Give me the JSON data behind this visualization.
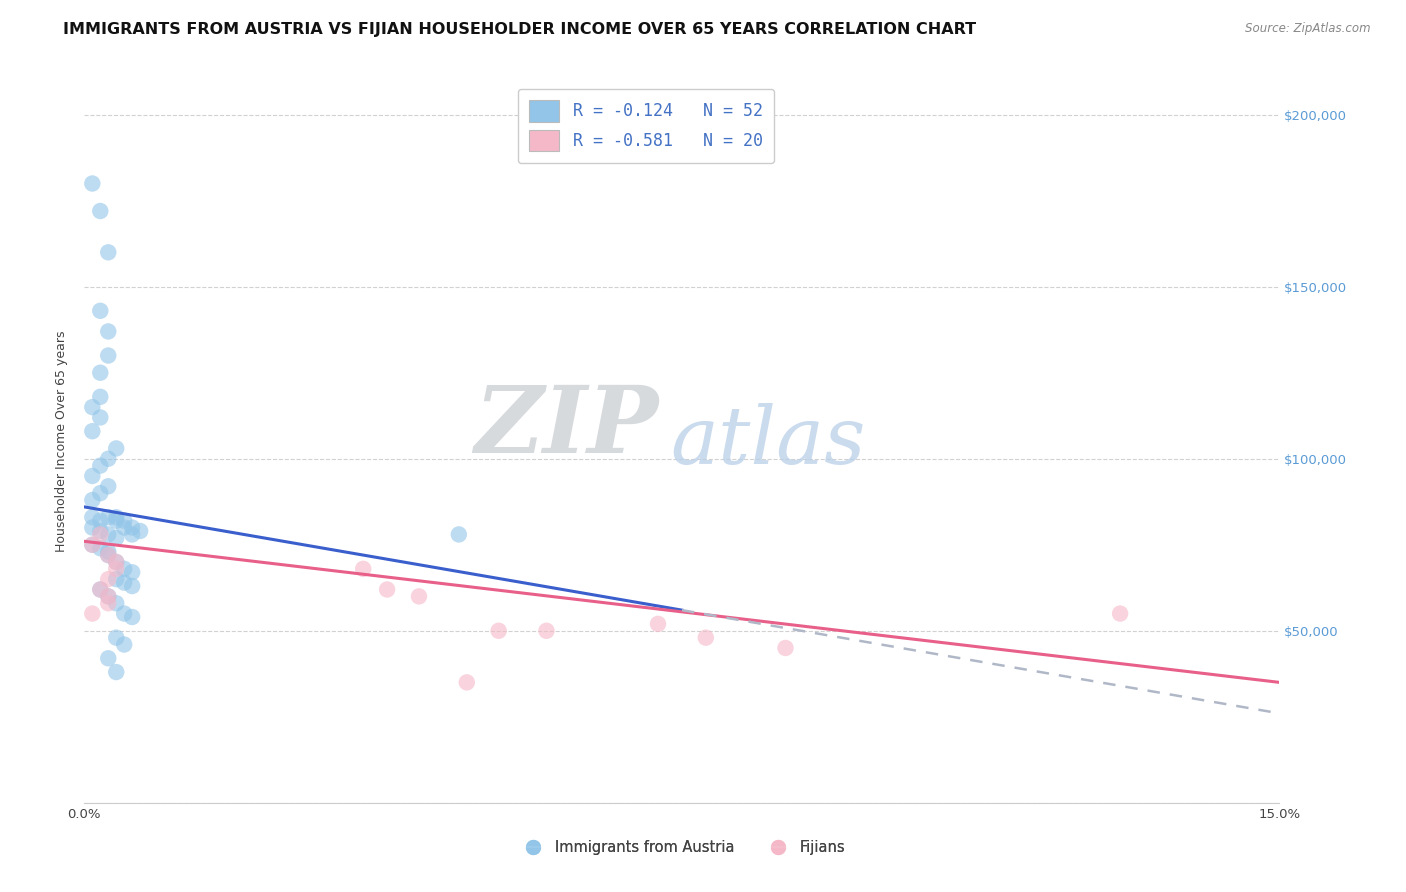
{
  "title": "IMMIGRANTS FROM AUSTRIA VS FIJIAN HOUSEHOLDER INCOME OVER 65 YEARS CORRELATION CHART",
  "source": "Source: ZipAtlas.com",
  "ylabel": "Householder Income Over 65 years",
  "legend_blue_label": "R = -0.124   N = 52",
  "legend_pink_label": "R = -0.581   N = 20",
  "bottom_legend_blue": "Immigrants from Austria",
  "bottom_legend_pink": "Fijians",
  "xlim": [
    0,
    0.15
  ],
  "ylim": [
    0,
    210000
  ],
  "yticks": [
    0,
    50000,
    100000,
    150000,
    200000
  ],
  "ytick_labels_right": [
    "",
    "$50,000",
    "$100,000",
    "$150,000",
    "$200,000"
  ],
  "xticks": [
    0,
    0.03,
    0.06,
    0.09,
    0.12,
    0.15
  ],
  "xtick_labels": [
    "0.0%",
    "",
    "",
    "",
    "",
    "15.0%"
  ],
  "grid_color": "#cccccc",
  "blue_color": "#92c5e8",
  "pink_color": "#f5b8c8",
  "trendline_blue": "#3a5fcd",
  "trendline_pink": "#e8608a",
  "trendline_dashed": "#b0b8c8",
  "blue_scatter": [
    [
      0.001,
      180000
    ],
    [
      0.002,
      172000
    ],
    [
      0.003,
      160000
    ],
    [
      0.002,
      143000
    ],
    [
      0.003,
      137000
    ],
    [
      0.002,
      125000
    ],
    [
      0.003,
      130000
    ],
    [
      0.001,
      115000
    ],
    [
      0.002,
      118000
    ],
    [
      0.001,
      108000
    ],
    [
      0.002,
      112000
    ],
    [
      0.001,
      95000
    ],
    [
      0.002,
      98000
    ],
    [
      0.003,
      100000
    ],
    [
      0.004,
      103000
    ],
    [
      0.001,
      88000
    ],
    [
      0.002,
      90000
    ],
    [
      0.003,
      92000
    ],
    [
      0.001,
      83000
    ],
    [
      0.002,
      82000
    ],
    [
      0.003,
      83000
    ],
    [
      0.004,
      82000
    ],
    [
      0.005,
      80000
    ],
    [
      0.001,
      80000
    ],
    [
      0.002,
      79000
    ],
    [
      0.003,
      78000
    ],
    [
      0.004,
      77000
    ],
    [
      0.001,
      75000
    ],
    [
      0.002,
      74000
    ],
    [
      0.003,
      73000
    ],
    [
      0.004,
      83000
    ],
    [
      0.005,
      82000
    ],
    [
      0.006,
      80000
    ],
    [
      0.007,
      79000
    ],
    [
      0.003,
      72000
    ],
    [
      0.004,
      70000
    ],
    [
      0.005,
      68000
    ],
    [
      0.006,
      67000
    ],
    [
      0.004,
      65000
    ],
    [
      0.005,
      64000
    ],
    [
      0.006,
      63000
    ],
    [
      0.002,
      62000
    ],
    [
      0.003,
      60000
    ],
    [
      0.004,
      58000
    ],
    [
      0.005,
      55000
    ],
    [
      0.006,
      54000
    ],
    [
      0.004,
      48000
    ],
    [
      0.005,
      46000
    ],
    [
      0.003,
      42000
    ],
    [
      0.004,
      38000
    ],
    [
      0.006,
      78000
    ],
    [
      0.047,
      78000
    ]
  ],
  "pink_scatter": [
    [
      0.001,
      75000
    ],
    [
      0.002,
      78000
    ],
    [
      0.003,
      72000
    ],
    [
      0.004,
      70000
    ],
    [
      0.003,
      65000
    ],
    [
      0.004,
      68000
    ],
    [
      0.002,
      62000
    ],
    [
      0.003,
      60000
    ],
    [
      0.001,
      55000
    ],
    [
      0.003,
      58000
    ],
    [
      0.035,
      68000
    ],
    [
      0.038,
      62000
    ],
    [
      0.042,
      60000
    ],
    [
      0.048,
      35000
    ],
    [
      0.052,
      50000
    ],
    [
      0.058,
      50000
    ],
    [
      0.072,
      52000
    ],
    [
      0.078,
      48000
    ],
    [
      0.088,
      45000
    ],
    [
      0.13,
      55000
    ]
  ],
  "blue_trend_x": [
    0.0,
    0.075
  ],
  "blue_trend_y": [
    86000,
    56000
  ],
  "pink_trend_x": [
    0.0,
    0.15
  ],
  "pink_trend_y": [
    76000,
    35000
  ],
  "dashed_trend_x": [
    0.075,
    0.15
  ],
  "dashed_trend_y": [
    56000,
    26000
  ],
  "marker_size": 140,
  "alpha": 0.6,
  "background_color": "#ffffff",
  "title_fontsize": 11.5,
  "axis_fontsize": 9,
  "tick_fontsize": 9.5,
  "right_tick_color": "#5b9bd5"
}
